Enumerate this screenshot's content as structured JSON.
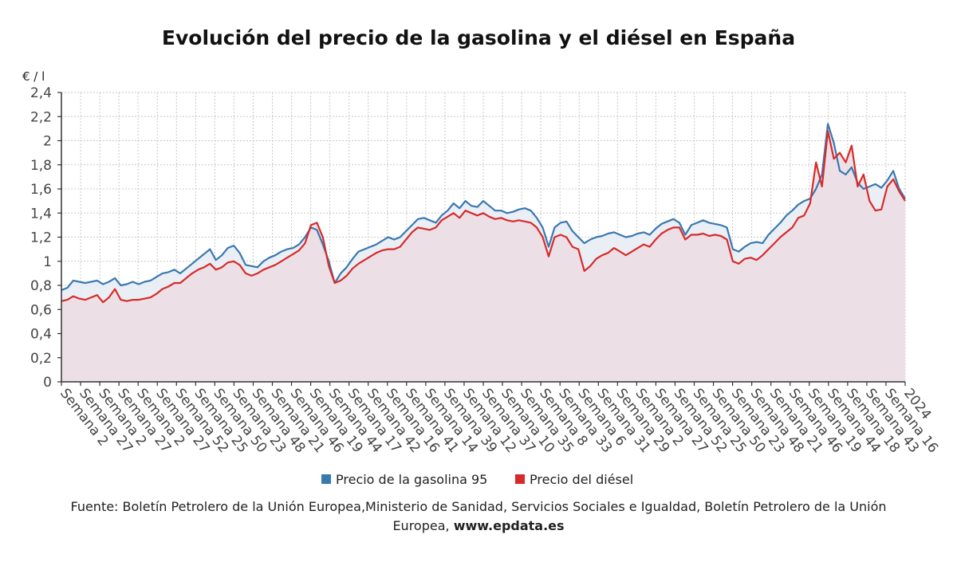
{
  "chart_data": {
    "type": "line",
    "title": "Evolución del precio de la gasolina y el diésel en España",
    "ylabel": "€ / l",
    "xlabel": "",
    "ylim": [
      0,
      2.4
    ],
    "y_ticks": [
      "0",
      "0,2",
      "0,4",
      "0,6",
      "0,8",
      "1",
      "1,2",
      "1,4",
      "1,6",
      "1,8",
      "2",
      "2,2",
      "2,4"
    ],
    "y_tick_values": [
      0,
      0.2,
      0.4,
      0.6,
      0.8,
      1,
      1.2,
      1.4,
      1.6,
      1.8,
      2,
      2.2,
      2.4
    ],
    "x_tick_labels": [
      "Semana 2",
      "Semana 27",
      "Semana 2",
      "Semana 27",
      "Semana 2",
      "Semana 27",
      "Semana 52",
      "Semana 25",
      "Semana 50",
      "Semana 23",
      "Semana 48",
      "Semana 21",
      "Semana 46",
      "Semana 19",
      "Semana 44",
      "Semana 17",
      "Semana 42",
      "Semana 16",
      "Semana 41",
      "Semana 14",
      "Semana 39",
      "Semana 12",
      "Semana 37",
      "Semana 10",
      "Semana 35",
      "Semana 8",
      "Semana 33",
      "Semana 6",
      "Semana 31",
      "Semana 29",
      "Semana 2",
      "Semana 27",
      "Semana 52",
      "Semana 25",
      "Semana 50",
      "Semana 23",
      "Semana 48",
      "Semana 21",
      "Semana 46",
      "Semana 19",
      "Semana 44",
      "Semana 18",
      "Semana 43",
      "Semana 16",
      "2024"
    ],
    "grid": true,
    "legend_position": "bottom-center",
    "series": [
      {
        "name": "Precio de la gasolina 95",
        "color": "#3a78b0",
        "values": [
          0.76,
          0.78,
          0.84,
          0.83,
          0.82,
          0.83,
          0.84,
          0.81,
          0.83,
          0.86,
          0.8,
          0.81,
          0.83,
          0.81,
          0.83,
          0.84,
          0.87,
          0.9,
          0.91,
          0.93,
          0.9,
          0.94,
          0.98,
          1.02,
          1.06,
          1.1,
          1.01,
          1.05,
          1.11,
          1.13,
          1.07,
          0.97,
          0.96,
          0.95,
          1.0,
          1.03,
          1.05,
          1.08,
          1.1,
          1.11,
          1.14,
          1.2,
          1.28,
          1.26,
          1.14,
          1.0,
          0.82,
          0.9,
          0.95,
          1.02,
          1.08,
          1.1,
          1.12,
          1.14,
          1.17,
          1.2,
          1.18,
          1.2,
          1.25,
          1.3,
          1.35,
          1.36,
          1.34,
          1.32,
          1.38,
          1.42,
          1.48,
          1.44,
          1.5,
          1.46,
          1.45,
          1.5,
          1.46,
          1.42,
          1.42,
          1.4,
          1.41,
          1.43,
          1.44,
          1.42,
          1.36,
          1.28,
          1.12,
          1.28,
          1.32,
          1.33,
          1.25,
          1.2,
          1.15,
          1.18,
          1.2,
          1.21,
          1.23,
          1.24,
          1.22,
          1.2,
          1.21,
          1.23,
          1.24,
          1.22,
          1.27,
          1.31,
          1.33,
          1.35,
          1.32,
          1.22,
          1.3,
          1.32,
          1.34,
          1.32,
          1.31,
          1.3,
          1.28,
          1.1,
          1.08,
          1.12,
          1.15,
          1.16,
          1.15,
          1.22,
          1.27,
          1.32,
          1.38,
          1.42,
          1.47,
          1.5,
          1.52,
          1.6,
          1.72,
          2.14,
          1.98,
          1.75,
          1.72,
          1.78,
          1.65,
          1.6,
          1.62,
          1.64,
          1.61,
          1.67,
          1.75,
          1.6,
          1.52
        ]
      },
      {
        "name": "Precio del diésel",
        "color": "#d72b2b",
        "values": [
          0.67,
          0.68,
          0.71,
          0.69,
          0.68,
          0.7,
          0.72,
          0.66,
          0.7,
          0.77,
          0.68,
          0.67,
          0.68,
          0.68,
          0.69,
          0.7,
          0.73,
          0.77,
          0.79,
          0.82,
          0.82,
          0.86,
          0.9,
          0.93,
          0.95,
          0.98,
          0.93,
          0.95,
          0.99,
          1.0,
          0.97,
          0.9,
          0.88,
          0.9,
          0.93,
          0.95,
          0.97,
          1.0,
          1.03,
          1.06,
          1.09,
          1.15,
          1.3,
          1.32,
          1.2,
          0.96,
          0.82,
          0.84,
          0.88,
          0.94,
          0.98,
          1.01,
          1.04,
          1.07,
          1.09,
          1.1,
          1.1,
          1.12,
          1.18,
          1.24,
          1.28,
          1.27,
          1.26,
          1.28,
          1.34,
          1.37,
          1.4,
          1.36,
          1.42,
          1.4,
          1.38,
          1.4,
          1.37,
          1.35,
          1.36,
          1.34,
          1.33,
          1.34,
          1.33,
          1.32,
          1.28,
          1.2,
          1.04,
          1.2,
          1.22,
          1.2,
          1.12,
          1.1,
          0.92,
          0.96,
          1.02,
          1.05,
          1.07,
          1.11,
          1.08,
          1.05,
          1.08,
          1.11,
          1.14,
          1.12,
          1.18,
          1.23,
          1.26,
          1.28,
          1.28,
          1.18,
          1.22,
          1.22,
          1.23,
          1.21,
          1.22,
          1.21,
          1.18,
          1.0,
          0.98,
          1.02,
          1.03,
          1.01,
          1.05,
          1.1,
          1.15,
          1.2,
          1.24,
          1.28,
          1.36,
          1.38,
          1.48,
          1.82,
          1.62,
          2.08,
          1.85,
          1.9,
          1.82,
          1.96,
          1.62,
          1.72,
          1.5,
          1.42,
          1.43,
          1.62,
          1.68,
          1.58,
          1.5
        ]
      }
    ]
  },
  "legend": {
    "items": [
      {
        "label": "Precio de la gasolina 95",
        "color": "#3a78b0"
      },
      {
        "label": "Precio del diésel",
        "color": "#d72b2b"
      }
    ]
  },
  "source": {
    "line1": "Fuente: Boletín Petrolero de la Unión Europea,Ministerio de Sanidad, Servicios Sociales e Igualdad, Boletín Petrolero de la Unión",
    "line2_prefix": "Europea, ",
    "line2_url": "www.epdata.es"
  }
}
